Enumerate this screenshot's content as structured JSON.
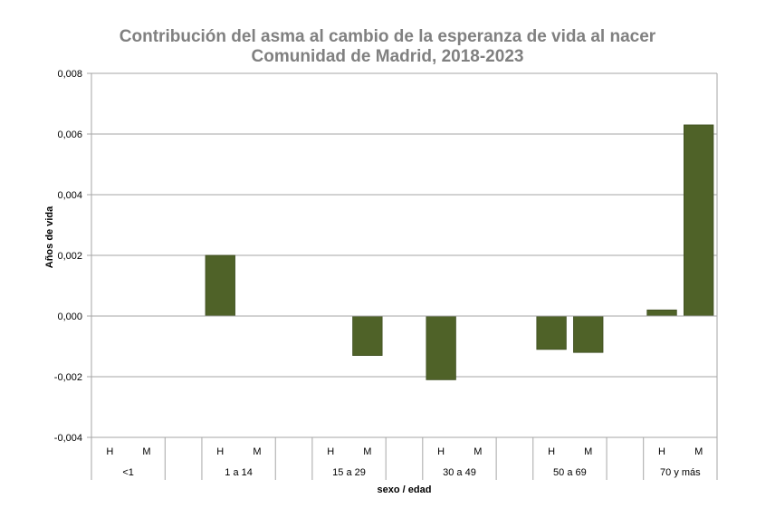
{
  "chart_data": {
    "type": "bar",
    "title": "Contribución del asma al cambio de la esperanza de vida al nacer",
    "subtitle": "Comunidad de Madrid, 2018-2023",
    "xlabel": "sexo / edad",
    "ylabel": "Años de vida",
    "ylim": [
      -0.004,
      0.008
    ],
    "yticks": [
      "-0,004",
      "-0,002",
      "0,000",
      "0,002",
      "0,004",
      "0,006",
      "0,008"
    ],
    "grid": true,
    "bar_color": "#4F6228",
    "groups": [
      {
        "label": "<1",
        "categories": [
          "H",
          "M"
        ],
        "values": [
          0,
          0
        ]
      },
      {
        "label": "1 a 14",
        "categories": [
          "H",
          "M"
        ],
        "values": [
          0.002,
          0
        ]
      },
      {
        "label": "15 a 29",
        "categories": [
          "H",
          "M"
        ],
        "values": [
          0,
          -0.0013
        ]
      },
      {
        "label": "30 a 49",
        "categories": [
          "H",
          "M"
        ],
        "values": [
          -0.0021,
          0
        ]
      },
      {
        "label": "50 a 69",
        "categories": [
          "H",
          "M"
        ],
        "values": [
          -0.0011,
          -0.0012
        ]
      },
      {
        "label": "70 y más",
        "categories": [
          "H",
          "M"
        ],
        "values": [
          0.0002,
          0.0063
        ]
      }
    ]
  }
}
